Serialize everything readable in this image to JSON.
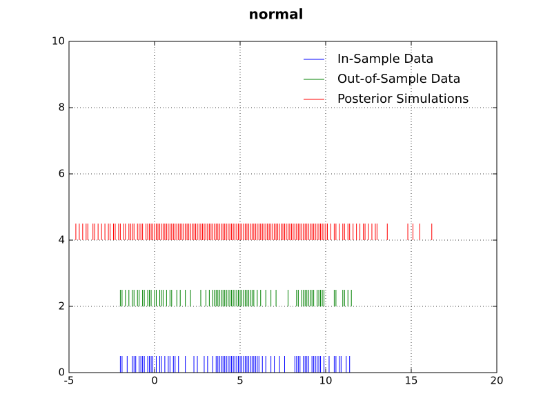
{
  "chart_data": {
    "type": "rug",
    "title": "normal",
    "xlim": [
      -5,
      20
    ],
    "xticks": [
      -5,
      0,
      5,
      10,
      15,
      20
    ],
    "ylim": [
      0,
      10
    ],
    "yticks": [
      0,
      2,
      4,
      6,
      8,
      10
    ],
    "grid": true,
    "legend": "upper right",
    "series": [
      {
        "name": "In-Sample Data",
        "color": "#0000ff",
        "ymin": 0,
        "ymax": 0.5,
        "values": [
          -2.0,
          -1.9,
          -1.6,
          -1.3,
          -1.2,
          -1.1,
          -0.9,
          -0.8,
          -0.7,
          -0.6,
          -0.4,
          -0.3,
          -0.2,
          -0.1,
          0.1,
          0.3,
          0.4,
          0.6,
          0.8,
          0.9,
          1.1,
          1.2,
          1.4,
          1.8,
          2.3,
          2.5,
          2.9,
          3.1,
          3.4,
          3.6,
          3.7,
          3.8,
          3.9,
          4.0,
          4.1,
          4.2,
          4.3,
          4.4,
          4.5,
          4.6,
          4.7,
          4.8,
          4.9,
          5.0,
          5.1,
          5.2,
          5.3,
          5.4,
          5.5,
          5.6,
          5.7,
          5.8,
          5.9,
          6.0,
          6.1,
          6.3,
          6.5,
          6.8,
          7.0,
          7.3,
          7.6,
          8.2,
          8.3,
          8.4,
          8.5,
          8.7,
          8.8,
          8.9,
          9.0,
          9.2,
          9.3,
          9.4,
          9.5,
          9.6,
          9.7,
          9.9,
          10.2,
          10.5,
          10.6,
          10.8,
          10.9,
          11.2,
          11.4
        ]
      },
      {
        "name": "Out-of-Sample Data",
        "color": "#008000",
        "ymin": 2,
        "ymax": 2.5,
        "values": [
          -2.0,
          -1.9,
          -1.7,
          -1.5,
          -1.3,
          -1.2,
          -1.0,
          -0.9,
          -0.7,
          -0.6,
          -0.4,
          -0.3,
          -0.2,
          0.0,
          0.1,
          0.3,
          0.4,
          0.5,
          0.7,
          0.9,
          1.0,
          1.3,
          1.5,
          1.8,
          2.1,
          2.7,
          3.0,
          3.2,
          3.4,
          3.5,
          3.6,
          3.7,
          3.8,
          3.9,
          4.0,
          4.1,
          4.2,
          4.3,
          4.4,
          4.5,
          4.6,
          4.7,
          4.8,
          4.9,
          5.0,
          5.1,
          5.2,
          5.3,
          5.4,
          5.5,
          5.6,
          5.7,
          5.8,
          6.0,
          6.2,
          6.5,
          6.8,
          7.1,
          7.8,
          8.3,
          8.4,
          8.6,
          8.7,
          8.8,
          8.9,
          9.0,
          9.1,
          9.2,
          9.3,
          9.5,
          9.6,
          9.7,
          9.8,
          9.9,
          10.5,
          10.6,
          11.0,
          11.1,
          11.3,
          11.5
        ]
      },
      {
        "name": "Posterior Simulations",
        "color": "#ff0000",
        "ymin": 4,
        "ymax": 4.5,
        "values": [
          -4.6,
          -4.4,
          -4.2,
          -4.0,
          -3.9,
          -3.6,
          -3.5,
          -3.3,
          -3.1,
          -2.9,
          -2.7,
          -2.6,
          -2.4,
          -2.3,
          -2.1,
          -2.0,
          -1.8,
          -1.7,
          -1.5,
          -1.4,
          -1.3,
          -1.2,
          -1.0,
          -0.9,
          -0.8,
          -0.7,
          -0.5,
          -0.4,
          -0.3,
          -0.2,
          -0.1,
          0.0,
          0.1,
          0.2,
          0.3,
          0.4,
          0.5,
          0.6,
          0.7,
          0.8,
          0.9,
          1.0,
          1.1,
          1.2,
          1.3,
          1.4,
          1.5,
          1.6,
          1.7,
          1.8,
          1.9,
          2.0,
          2.1,
          2.2,
          2.3,
          2.4,
          2.5,
          2.6,
          2.7,
          2.8,
          2.9,
          3.0,
          3.1,
          3.2,
          3.3,
          3.4,
          3.5,
          3.6,
          3.7,
          3.8,
          3.9,
          4.0,
          4.1,
          4.2,
          4.3,
          4.4,
          4.5,
          4.6,
          4.7,
          4.8,
          4.9,
          5.0,
          5.1,
          5.2,
          5.3,
          5.4,
          5.5,
          5.6,
          5.7,
          5.8,
          5.9,
          6.0,
          6.1,
          6.2,
          6.3,
          6.4,
          6.5,
          6.6,
          6.7,
          6.8,
          6.9,
          7.0,
          7.1,
          7.2,
          7.3,
          7.4,
          7.5,
          7.6,
          7.7,
          7.8,
          7.9,
          8.0,
          8.1,
          8.2,
          8.3,
          8.4,
          8.5,
          8.6,
          8.7,
          8.8,
          8.9,
          9.0,
          9.1,
          9.2,
          9.3,
          9.4,
          9.5,
          9.6,
          9.7,
          9.8,
          9.9,
          10.0,
          10.1,
          10.3,
          10.5,
          10.6,
          10.8,
          11.0,
          11.1,
          11.3,
          11.4,
          11.6,
          11.8,
          12.0,
          12.2,
          12.3,
          12.5,
          12.7,
          12.9,
          13.0,
          13.6,
          14.8,
          15.1,
          15.5,
          16.2
        ]
      }
    ]
  }
}
